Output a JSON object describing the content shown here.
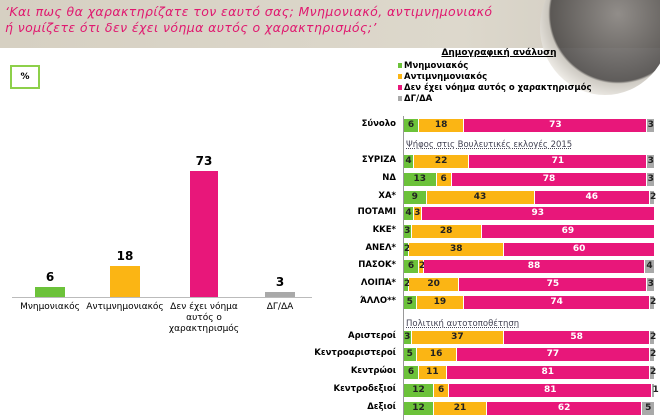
{
  "question": [
    "‘Και πως θα χαρακτηρίζατε τον εαυτό σας; Μνημονιακό, αντιμνημονιακό",
    "ή νομίζετε ότι δεν έχει νόημα αυτός ο χαρακτηρισμός;’"
  ],
  "unit": "%",
  "colors": {
    "mnim": "#6cc23a",
    "anti": "#fbb514",
    "den": "#e8177a",
    "dg": "#a9a9a9"
  },
  "chart_data": [
    {
      "type": "bar",
      "title": "",
      "categories": [
        "Μνημονιακός",
        "Αντιμνημονιακός",
        "Δεν έχει νόημα αυτός ο χαρακτηρισμός",
        "ΔΓ/ΔΑ"
      ],
      "values": [
        6,
        18,
        73,
        3
      ],
      "ylim": [
        0,
        80
      ]
    },
    {
      "type": "bar",
      "stacked": true,
      "title": "Δημογραφική ανάλυση",
      "legend": [
        "Μνημονιακός",
        "Αντιμνημονιακός",
        "Δεν έχει νόημα αυτός ο χαρακτηρισμός",
        "ΔΓ/ΔΑ"
      ],
      "groups": [
        {
          "header": "",
          "rows": [
            {
              "label": "Σύνολο",
              "values": [
                6,
                18,
                73,
                3
              ]
            }
          ]
        },
        {
          "header": "Ψήφος στις Βουλευτικές εκλογές 2015",
          "rows": [
            {
              "label": "ΣΥΡΙΖΑ",
              "values": [
                4,
                22,
                71,
                3
              ]
            },
            {
              "label": "ΝΔ",
              "values": [
                13,
                6,
                78,
                3
              ]
            },
            {
              "label": "ΧΑ*",
              "values": [
                9,
                43,
                46,
                2
              ]
            },
            {
              "label": "ΠΟΤΑΜΙ",
              "values": [
                4,
                3,
                93,
                0
              ]
            },
            {
              "label": "ΚΚΕ*",
              "values": [
                3,
                28,
                69,
                0
              ]
            },
            {
              "label": "ΑΝΕΛ*",
              "values": [
                2,
                38,
                60,
                0
              ]
            },
            {
              "label": "ΠΑΣΟΚ*",
              "values": [
                6,
                2,
                88,
                4
              ]
            },
            {
              "label": "ΛΟΙΠΑ*",
              "values": [
                2,
                20,
                75,
                3
              ]
            },
            {
              "label": "ΆΛΛΟ**",
              "values": [
                5,
                19,
                74,
                2
              ]
            }
          ]
        },
        {
          "header": "Πολιτική αυτοτοποθέτηση",
          "rows": [
            {
              "label": "Αριστεροί",
              "values": [
                3,
                37,
                58,
                2
              ]
            },
            {
              "label": "Κεντροαριστεροί",
              "values": [
                5,
                16,
                77,
                2
              ]
            },
            {
              "label": "Κεντρώοι",
              "values": [
                6,
                11,
                81,
                2
              ]
            },
            {
              "label": "Κεντροδεξιοί",
              "values": [
                12,
                6,
                81,
                1
              ]
            },
            {
              "label": "Δεξιοί",
              "values": [
                12,
                21,
                62,
                5
              ]
            }
          ]
        }
      ]
    }
  ]
}
